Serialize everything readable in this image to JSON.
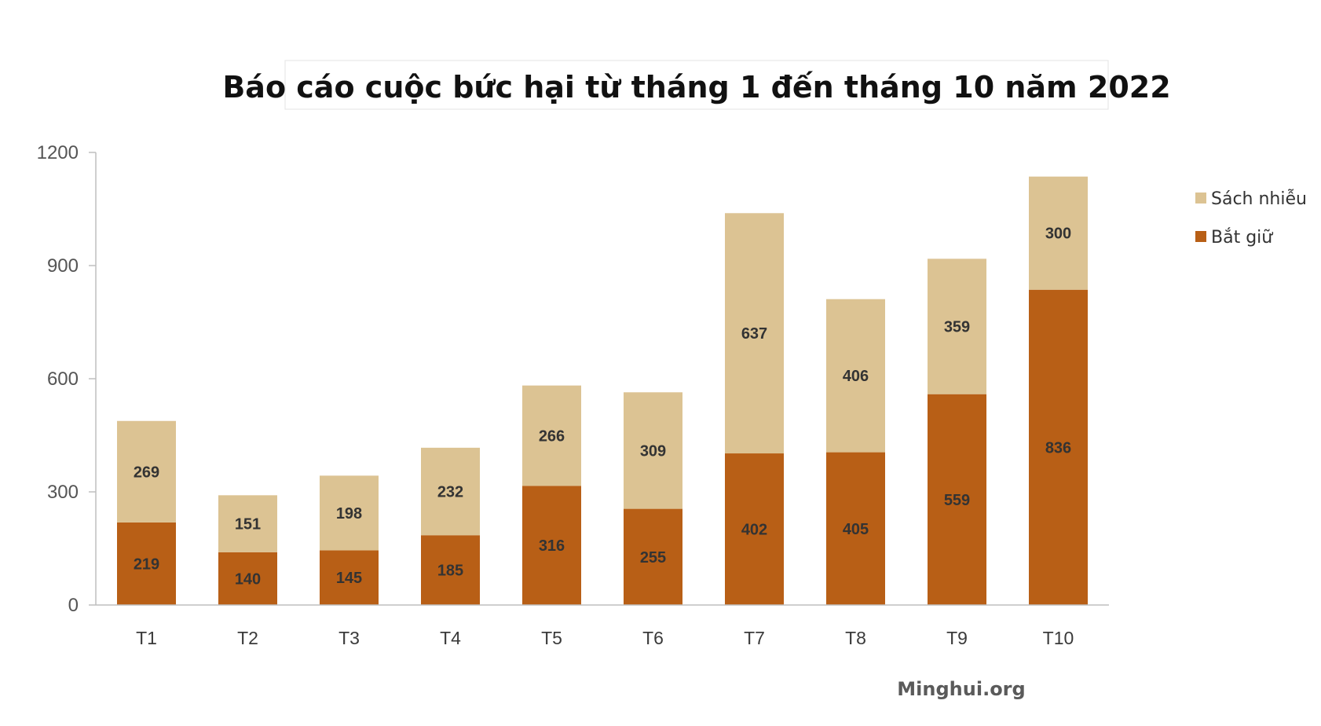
{
  "source_text": "Minghui.org",
  "colors": {
    "bat_giu": "#b85f16",
    "sach_nhieu": "#dcc393"
  },
  "chart_data": {
    "type": "bar",
    "stacked": true,
    "title": "Báo cáo cuộc bức hại từ tháng 1 đến tháng 10 năm 2022",
    "categories": [
      "T1",
      "T2",
      "T3",
      "T4",
      "T5",
      "T6",
      "T7",
      "T8",
      "T9",
      "T10"
    ],
    "series": [
      {
        "name": "Bắt giữ",
        "values": [
          219,
          140,
          145,
          185,
          316,
          255,
          402,
          405,
          559,
          836
        ]
      },
      {
        "name": "Sách nhiễu",
        "values": [
          269,
          151,
          198,
          232,
          266,
          309,
          637,
          406,
          359,
          300
        ]
      }
    ],
    "legend_order": [
      "Sách nhiễu",
      "Bắt giữ"
    ],
    "ylim": [
      0,
      1200
    ],
    "yticks": [
      0,
      300,
      600,
      900,
      1200
    ],
    "xlabel": "",
    "ylabel": "",
    "grid": false,
    "legend_position": "right",
    "data_labels": true
  }
}
